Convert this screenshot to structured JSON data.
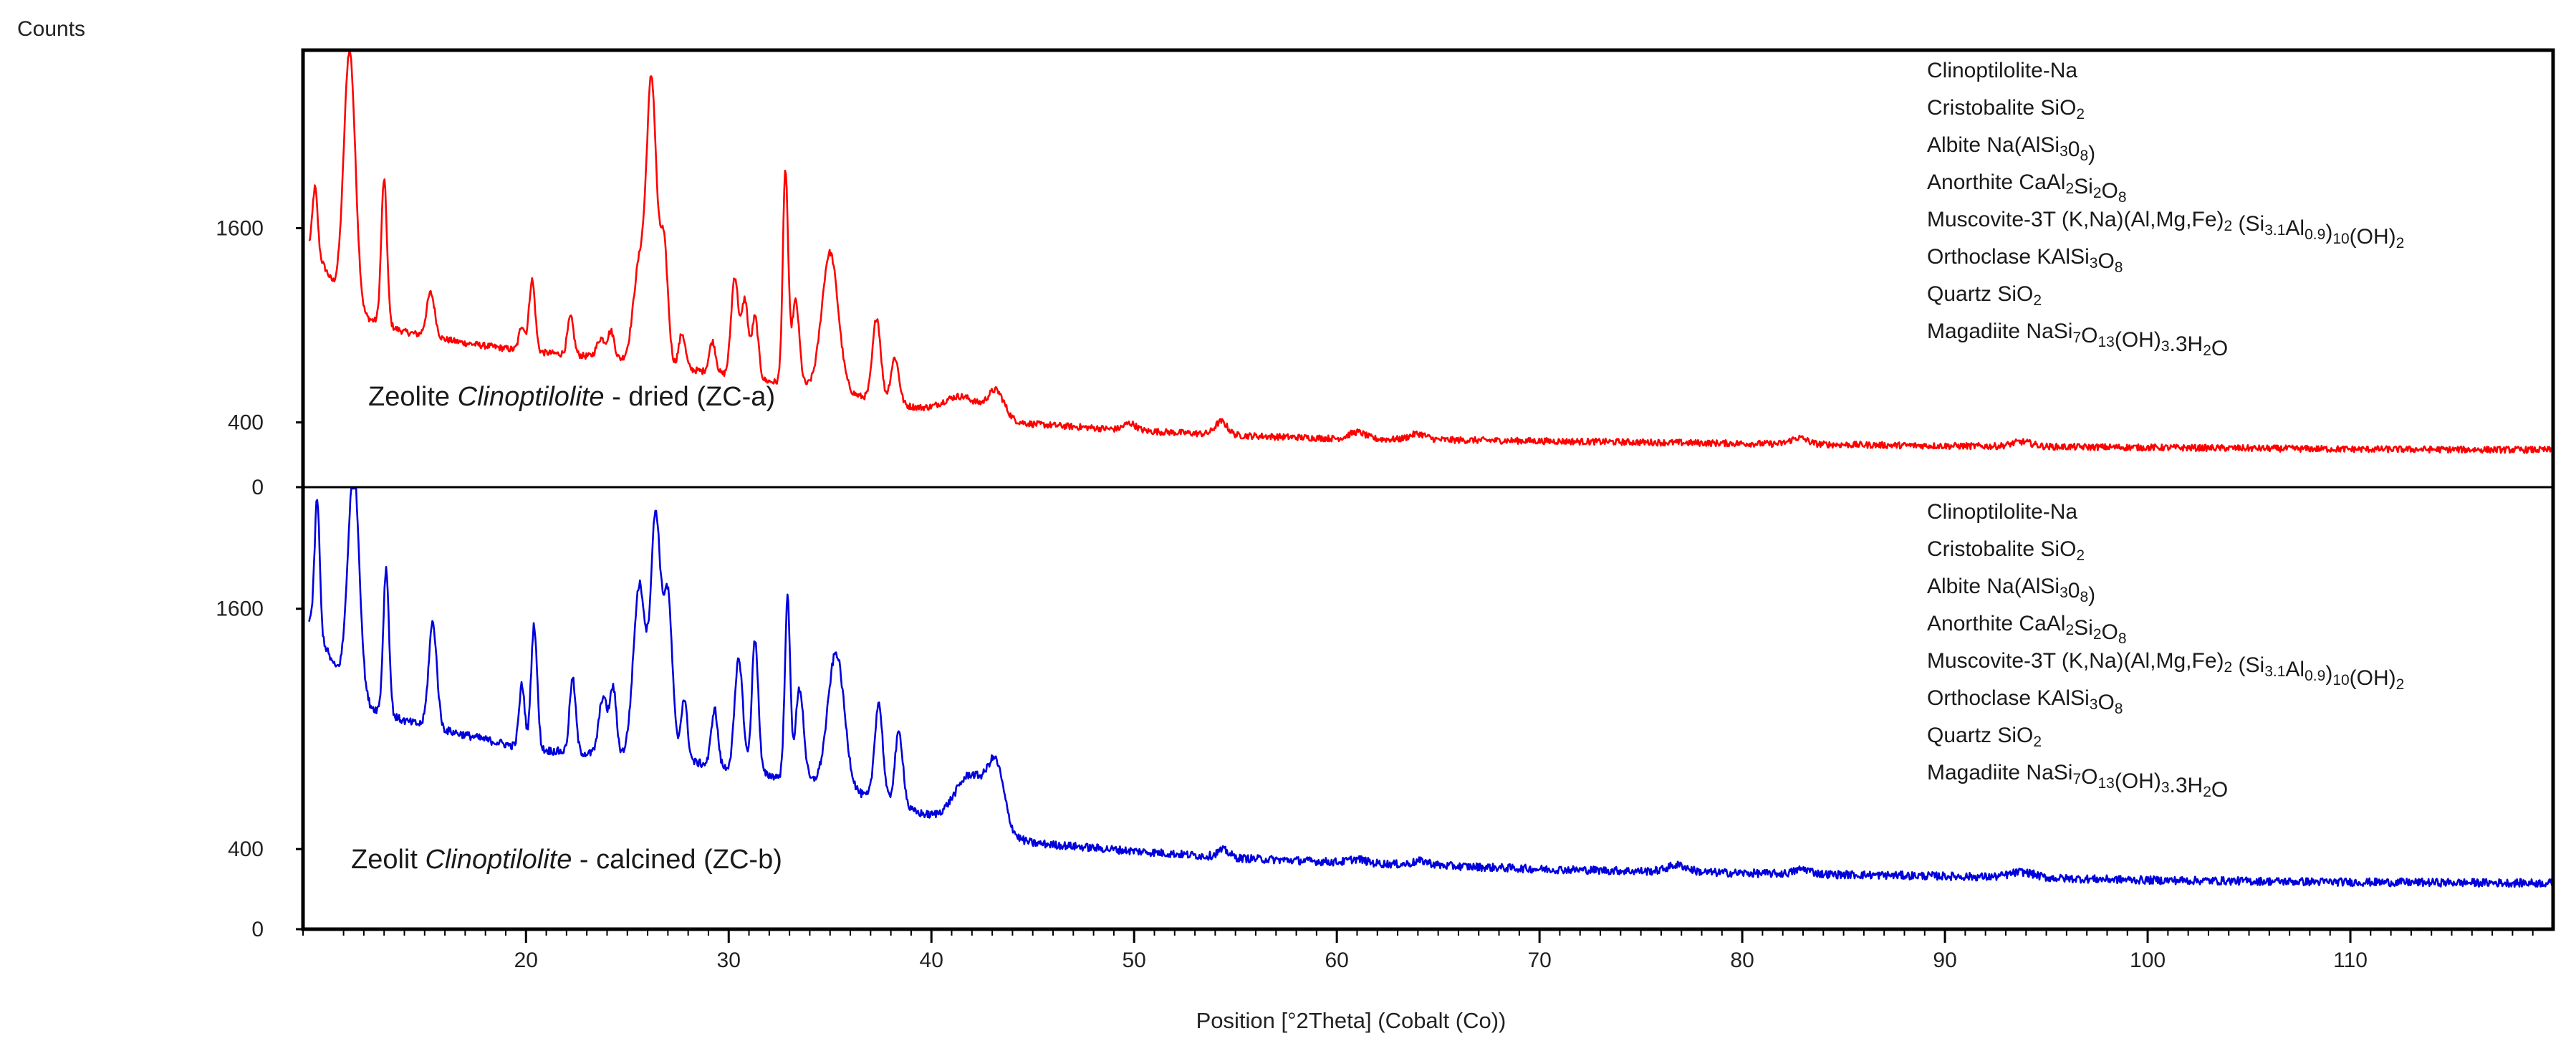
{
  "chart_data": {
    "type": "line",
    "ylabel": "Counts",
    "xlabel": "Position [°2Theta] (Cobalt (Co))",
    "xlim": [
      9.0,
      120.0
    ],
    "x_ticks": [
      20,
      30,
      40,
      50,
      60,
      70,
      80,
      90,
      100,
      110
    ],
    "x_tick_labels": [
      "20",
      "30",
      "40",
      "50",
      "60",
      "70",
      "80",
      "90",
      "100",
      "110"
    ],
    "grid": false,
    "panels": [
      {
        "id": "dried",
        "label_prefix": "Zeolite ",
        "label_italic": "Clinoptilolite",
        "label_suffix": " - dried  (ZC-a)",
        "color": "#ff0000",
        "y_ticks": [
          0,
          400,
          1600
        ],
        "y_tick_labels": [
          "0",
          "400",
          "1600"
        ],
        "ylim": [
          0,
          2700
        ],
        "baseline": [
          [
            9.5,
            1500
          ],
          [
            10.5,
            1250
          ],
          [
            12,
            1050
          ],
          [
            14,
            960
          ],
          [
            17,
            890
          ],
          [
            20,
            840
          ],
          [
            24,
            800
          ],
          [
            27,
            750
          ],
          [
            30,
            690
          ],
          [
            35,
            600
          ],
          [
            40,
            470
          ],
          [
            45,
            390
          ],
          [
            50,
            350
          ],
          [
            55,
            320
          ],
          [
            60,
            300
          ],
          [
            70,
            285
          ],
          [
            80,
            270
          ],
          [
            90,
            255
          ],
          [
            100,
            245
          ],
          [
            110,
            235
          ],
          [
            120,
            230
          ]
        ],
        "peaks": [
          [
            9.6,
            1850,
            0.12
          ],
          [
            11.3,
            2700,
            0.28
          ],
          [
            13.0,
            1900,
            0.14
          ],
          [
            15.3,
            1200,
            0.2
          ],
          [
            19.8,
            1000,
            0.14
          ],
          [
            20.3,
            1280,
            0.15
          ],
          [
            22.2,
            1050,
            0.15
          ],
          [
            23.7,
            920,
            0.2
          ],
          [
            24.2,
            960,
            0.16
          ],
          [
            25.6,
            1380,
            0.3
          ],
          [
            26.2,
            2450,
            0.24
          ],
          [
            26.8,
            1500,
            0.2
          ],
          [
            27.7,
            950,
            0.16
          ],
          [
            29.2,
            900,
            0.16
          ],
          [
            30.3,
            1300,
            0.18
          ],
          [
            30.8,
            1150,
            0.16
          ],
          [
            31.3,
            1050,
            0.16
          ],
          [
            32.8,
            1950,
            0.13
          ],
          [
            33.3,
            1150,
            0.18
          ],
          [
            35.0,
            1450,
            0.4
          ],
          [
            37.3,
            1050,
            0.2
          ],
          [
            38.2,
            800,
            0.2
          ],
          [
            41.5,
            560,
            0.9
          ],
          [
            43.2,
            580,
            0.4
          ],
          [
            49.8,
            395,
            0.3
          ],
          [
            54.3,
            405,
            0.3
          ],
          [
            61.0,
            340,
            0.4
          ],
          [
            64.0,
            330,
            0.4
          ],
          [
            82.8,
            305,
            0.4
          ],
          [
            93.8,
            280,
            0.5
          ]
        ],
        "noise": 20,
        "phases": [
          [
            {
              "t": "Clinoptilolite-Na"
            }
          ],
          [
            {
              "t": "Cristobalite SiO"
            },
            {
              "t": "2",
              "s": true
            }
          ],
          [
            {
              "t": "Albite Na(AlSi"
            },
            {
              "t": "3",
              "s": true
            },
            {
              "t": "0"
            },
            {
              "t": "8",
              "s": true
            },
            {
              "t": ")"
            }
          ],
          [
            {
              "t": "Anorthite CaAl"
            },
            {
              "t": "2",
              "s": true
            },
            {
              "t": "Si"
            },
            {
              "t": "2",
              "s": true
            },
            {
              "t": "O"
            },
            {
              "t": "8",
              "s": true
            }
          ],
          [
            {
              "t": "Muscovite-3T (K,Na)(Al,Mg,Fe)"
            },
            {
              "t": "2",
              "s": true
            },
            {
              "t": " (Si"
            },
            {
              "t": "3.1",
              "s": true
            },
            {
              "t": "Al"
            },
            {
              "t": "0.9",
              "s": true
            },
            {
              "t": ")"
            },
            {
              "t": "10",
              "s": true
            },
            {
              "t": "(OH)"
            },
            {
              "t": "2",
              "s": true
            }
          ],
          [
            {
              "t": "Orthoclase KAlSi"
            },
            {
              "t": "3",
              "s": true
            },
            {
              "t": "O"
            },
            {
              "t": "8",
              "s": true
            }
          ],
          [
            {
              "t": "Quartz SiO"
            },
            {
              "t": "2",
              "s": true
            }
          ],
          [
            {
              "t": "Magadiite NaSi"
            },
            {
              "t": "7",
              "s": true
            },
            {
              "t": "O"
            },
            {
              "t": "13",
              "s": true
            },
            {
              "t": "(OH)"
            },
            {
              "t": "3",
              "s": true
            },
            {
              "t": ".3H"
            },
            {
              "t": "2",
              "s": true
            },
            {
              "t": "O"
            }
          ]
        ]
      },
      {
        "id": "calcined",
        "label_prefix": "Zeolit ",
        "label_italic": "Clinoptilolite",
        "label_suffix": " - calcined (ZC-b)",
        "color": "#0000dd",
        "y_ticks": [
          0,
          400,
          1600
        ],
        "y_tick_labels": [
          "0",
          "400",
          "1600"
        ],
        "ylim": [
          0,
          2200
        ],
        "baseline": [
          [
            9.5,
            1550
          ],
          [
            10.5,
            1320
          ],
          [
            12,
            1120
          ],
          [
            14,
            1040
          ],
          [
            17,
            970
          ],
          [
            20,
            900
          ],
          [
            24,
            870
          ],
          [
            27,
            860
          ],
          [
            30,
            800
          ],
          [
            35,
            720
          ],
          [
            40,
            560
          ],
          [
            45,
            430
          ],
          [
            50,
            390
          ],
          [
            55,
            355
          ],
          [
            60,
            335
          ],
          [
            70,
            300
          ],
          [
            80,
            280
          ],
          [
            90,
            265
          ],
          [
            100,
            245
          ],
          [
            110,
            235
          ],
          [
            120,
            230
          ]
        ],
        "peaks": [
          [
            9.7,
            2150,
            0.12
          ],
          [
            11.5,
            2300,
            0.28
          ],
          [
            13.1,
            1800,
            0.14
          ],
          [
            15.4,
            1530,
            0.2
          ],
          [
            19.8,
            1220,
            0.14
          ],
          [
            20.4,
            1520,
            0.15
          ],
          [
            22.3,
            1250,
            0.15
          ],
          [
            23.8,
            1160,
            0.2
          ],
          [
            24.3,
            1200,
            0.16
          ],
          [
            25.6,
            1720,
            0.3
          ],
          [
            26.4,
            2050,
            0.24
          ],
          [
            27.0,
            1650,
            0.22
          ],
          [
            27.8,
            1150,
            0.16
          ],
          [
            29.3,
            1100,
            0.16
          ],
          [
            30.5,
            1350,
            0.2
          ],
          [
            31.3,
            1450,
            0.16
          ],
          [
            32.9,
            1650,
            0.13
          ],
          [
            33.5,
            1200,
            0.2
          ],
          [
            35.3,
            1380,
            0.4
          ],
          [
            37.4,
            1130,
            0.2
          ],
          [
            38.4,
            980,
            0.2
          ],
          [
            42.0,
            770,
            0.8
          ],
          [
            43.2,
            760,
            0.4
          ],
          [
            54.4,
            395,
            0.3
          ],
          [
            61.0,
            350,
            0.4
          ],
          [
            64.2,
            340,
            0.4
          ],
          [
            76.8,
            320,
            0.5
          ],
          [
            83.0,
            300,
            0.4
          ],
          [
            93.8,
            285,
            0.6
          ]
        ],
        "noise": 20,
        "phases": [
          [
            {
              "t": "Clinoptilolite-Na"
            }
          ],
          [
            {
              "t": "Cristobalite SiO"
            },
            {
              "t": "2",
              "s": true
            }
          ],
          [
            {
              "t": "Albite Na(AlSi"
            },
            {
              "t": "3",
              "s": true
            },
            {
              "t": "0"
            },
            {
              "t": "8",
              "s": true
            },
            {
              "t": ")"
            }
          ],
          [
            {
              "t": "Anorthite CaAl"
            },
            {
              "t": "2",
              "s": true
            },
            {
              "t": "Si"
            },
            {
              "t": "2",
              "s": true
            },
            {
              "t": "O"
            },
            {
              "t": "8",
              "s": true
            }
          ],
          [
            {
              "t": "Muscovite-3T (K,Na)(Al,Mg,Fe)"
            },
            {
              "t": "2",
              "s": true
            },
            {
              "t": " (Si"
            },
            {
              "t": "3.1",
              "s": true
            },
            {
              "t": "Al"
            },
            {
              "t": "0.9",
              "s": true
            },
            {
              "t": ")"
            },
            {
              "t": "10",
              "s": true
            },
            {
              "t": "(OH)"
            },
            {
              "t": "2",
              "s": true
            }
          ],
          [
            {
              "t": "Orthoclase KAlSi"
            },
            {
              "t": "3",
              "s": true
            },
            {
              "t": "O"
            },
            {
              "t": "8",
              "s": true
            }
          ],
          [
            {
              "t": "Quartz SiO"
            },
            {
              "t": "2",
              "s": true
            }
          ],
          [
            {
              "t": "Magadiite NaSi"
            },
            {
              "t": "7",
              "s": true
            },
            {
              "t": "O"
            },
            {
              "t": "13",
              "s": true
            },
            {
              "t": "(OH)"
            },
            {
              "t": "3",
              "s": true
            },
            {
              "t": ".3H"
            },
            {
              "t": "2",
              "s": true
            },
            {
              "t": "O"
            }
          ]
        ]
      }
    ]
  }
}
